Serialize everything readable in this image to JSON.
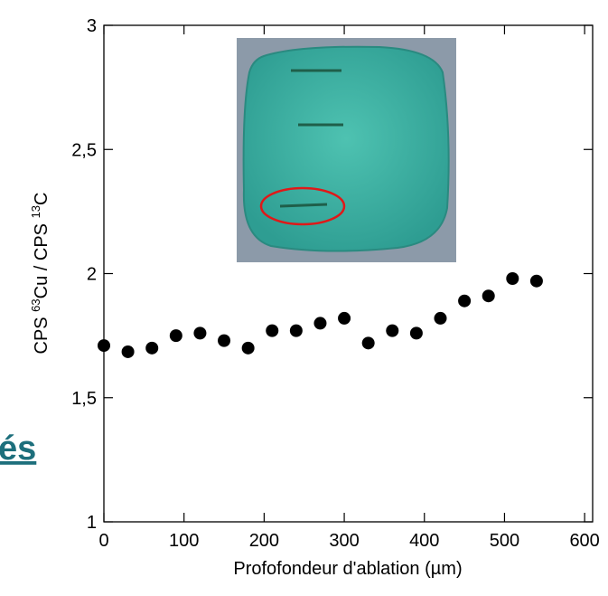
{
  "overlay_text": "és",
  "chart_data": {
    "type": "scatter",
    "xlabel": "Profofondeur d'ablation (µm)",
    "ylabel_parts": [
      "CPS ",
      "63",
      "Cu / CPS ",
      "13",
      "C"
    ],
    "x": [
      0,
      30,
      60,
      90,
      120,
      150,
      180,
      210,
      240,
      270,
      300,
      330,
      360,
      390,
      420,
      450,
      480,
      510,
      540
    ],
    "series": [
      {
        "color": "#000000",
        "values": [
          1.71,
          1.685,
          1.7,
          1.75,
          1.76,
          1.73,
          1.7,
          1.77,
          1.77,
          1.8,
          1.82,
          1.72,
          1.77,
          1.76,
          1.82,
          1.89,
          1.91,
          1.98,
          1.97
        ]
      }
    ],
    "xlim": [
      0,
      610
    ],
    "ylim": [
      1,
      3
    ],
    "xticks": [
      0,
      100,
      200,
      300,
      400,
      500,
      600
    ],
    "yticks": [
      1,
      {
        "value": 1.5,
        "label": "1,5"
      },
      2,
      {
        "value": 2.5,
        "label": "2,5"
      },
      3
    ]
  }
}
